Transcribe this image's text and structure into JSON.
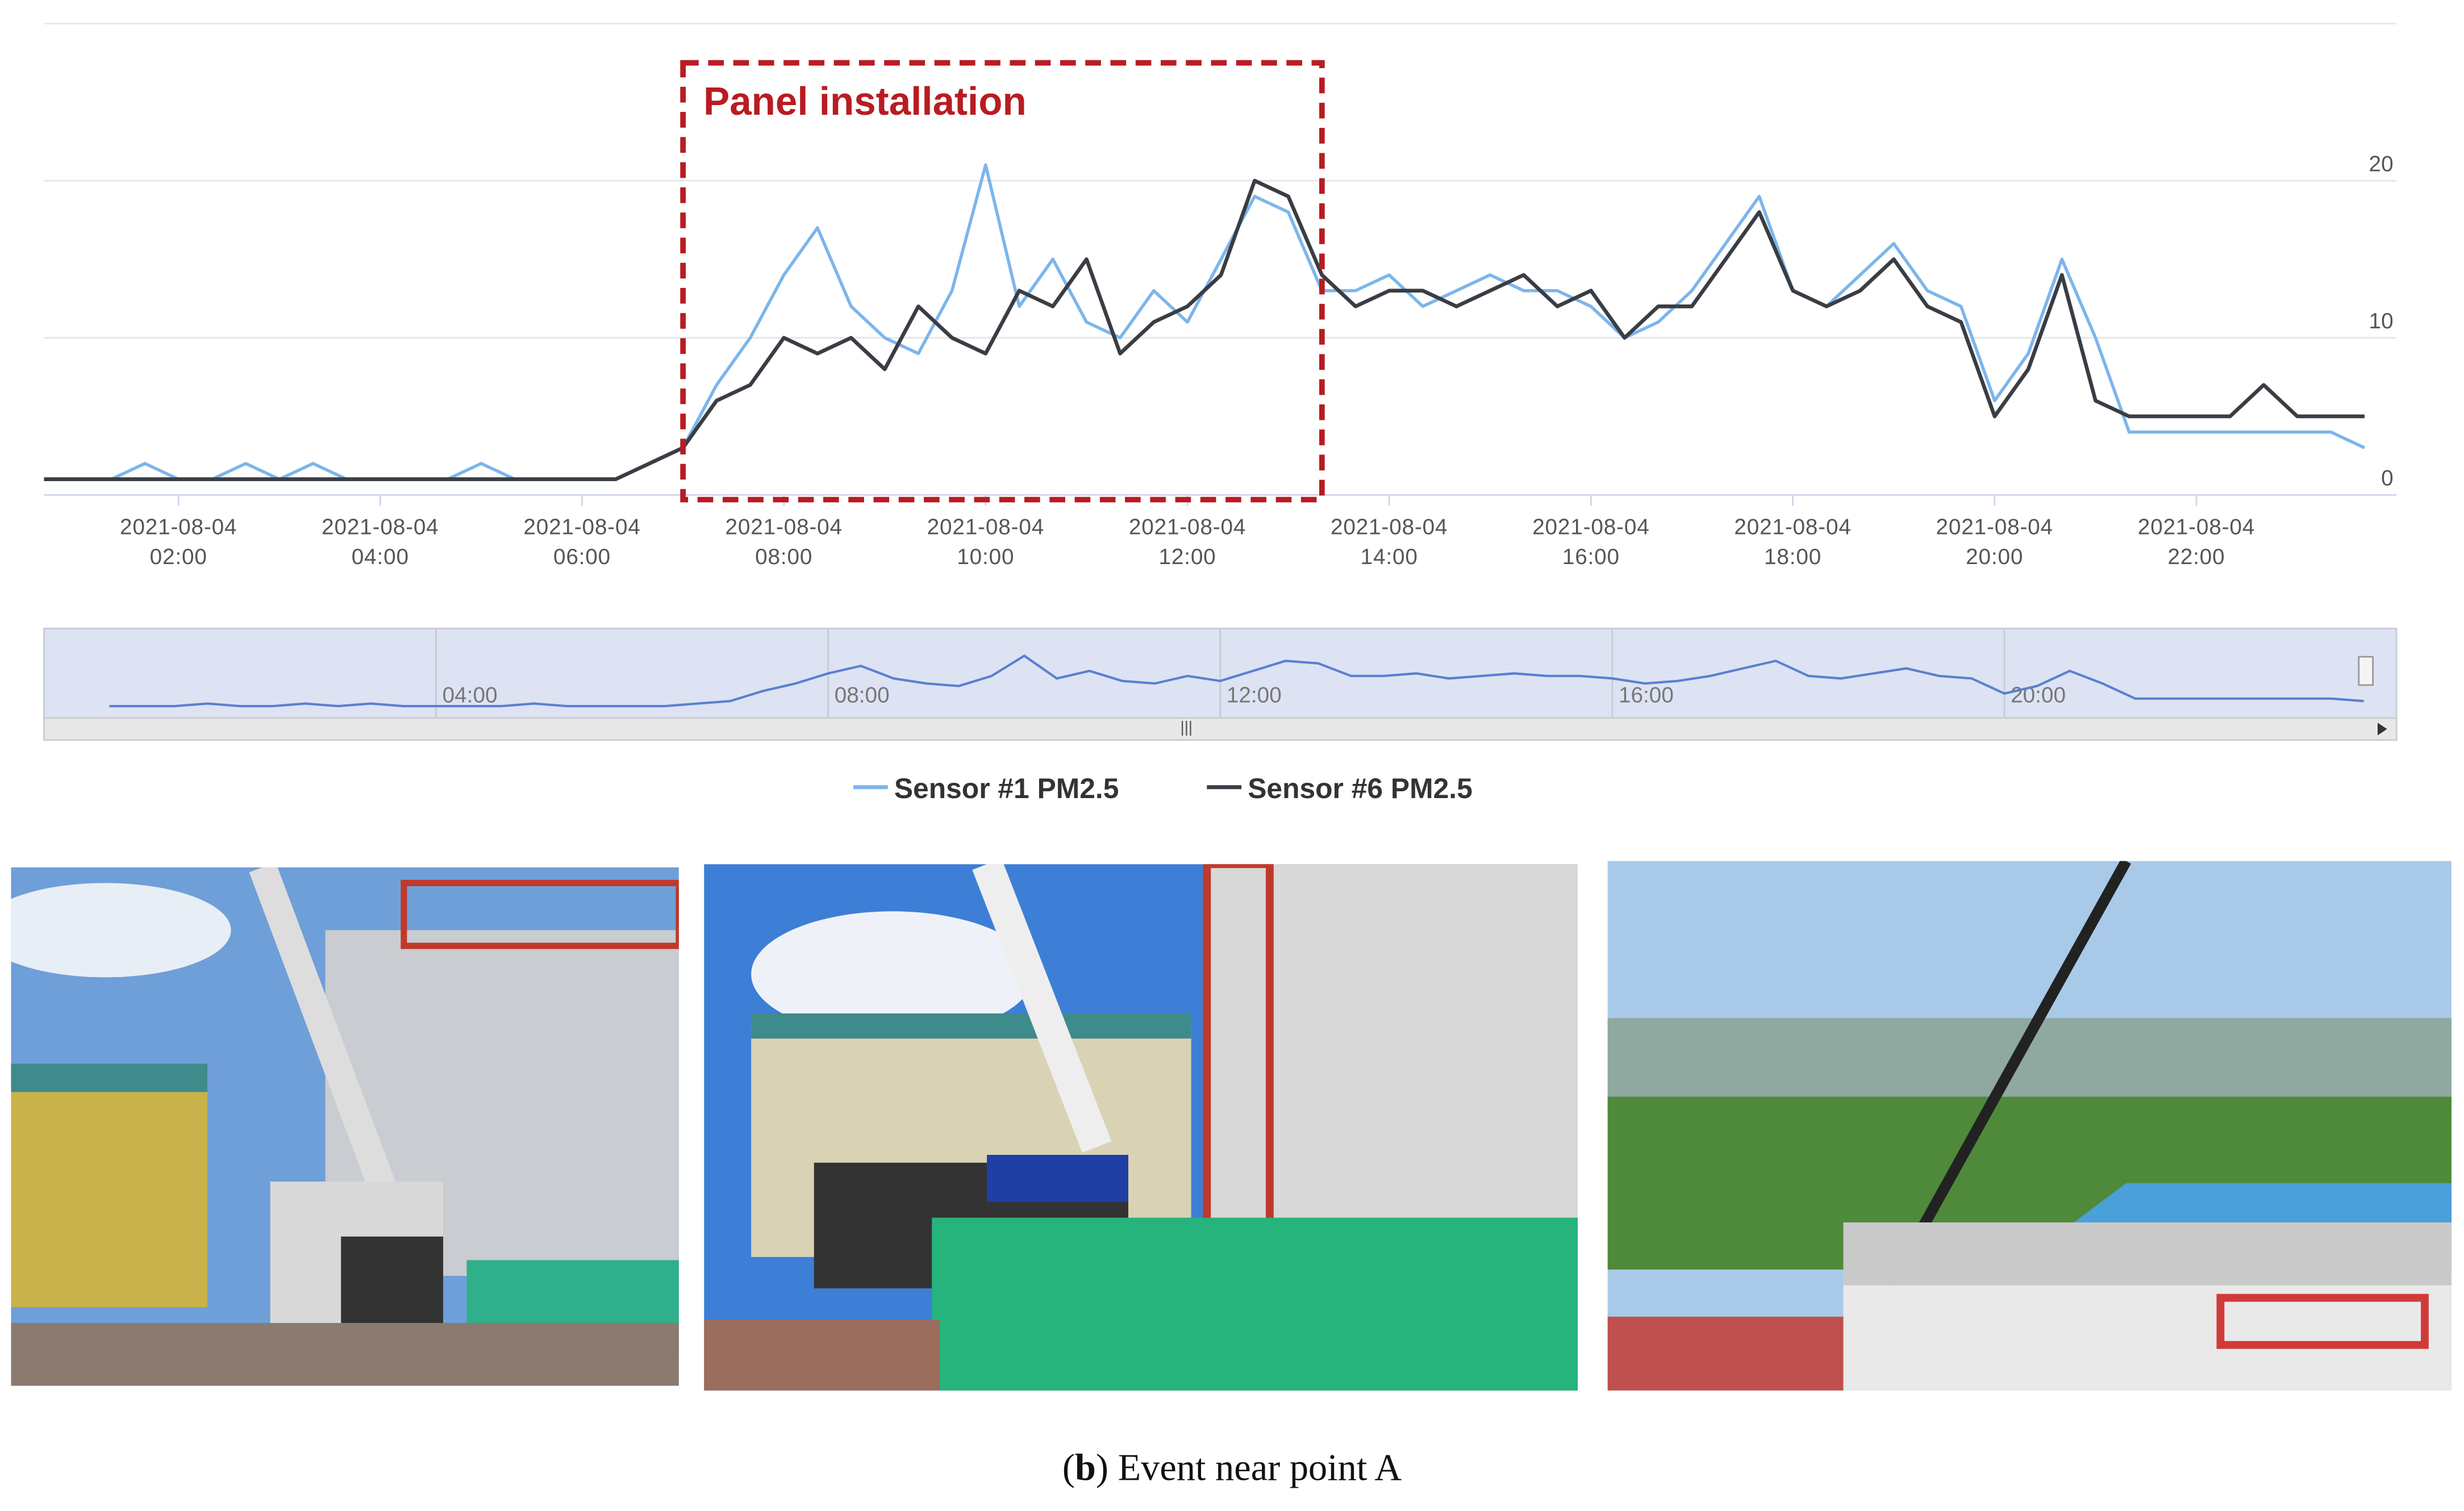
{
  "chart_data": {
    "type": "line",
    "annotation": {
      "text": "Panel installation",
      "start": "2021-08-04 07:00",
      "end": "2021-08-04 13:20"
    },
    "x": [
      "2021-08-04 00:40",
      "2021-08-04 01:00",
      "2021-08-04 01:20",
      "2021-08-04 01:40",
      "2021-08-04 02:00",
      "2021-08-04 02:20",
      "2021-08-04 02:40",
      "2021-08-04 03:00",
      "2021-08-04 03:20",
      "2021-08-04 03:40",
      "2021-08-04 04:00",
      "2021-08-04 04:20",
      "2021-08-04 04:40",
      "2021-08-04 05:00",
      "2021-08-04 05:20",
      "2021-08-04 05:40",
      "2021-08-04 06:00",
      "2021-08-04 06:20",
      "2021-08-04 06:40",
      "2021-08-04 07:00",
      "2021-08-04 07:20",
      "2021-08-04 07:40",
      "2021-08-04 08:00",
      "2021-08-04 08:20",
      "2021-08-04 08:40",
      "2021-08-04 09:00",
      "2021-08-04 09:20",
      "2021-08-04 09:40",
      "2021-08-04 10:00",
      "2021-08-04 10:20",
      "2021-08-04 10:40",
      "2021-08-04 11:00",
      "2021-08-04 11:20",
      "2021-08-04 11:40",
      "2021-08-04 12:00",
      "2021-08-04 12:20",
      "2021-08-04 12:40",
      "2021-08-04 13:00",
      "2021-08-04 13:20",
      "2021-08-04 13:40",
      "2021-08-04 14:00",
      "2021-08-04 14:20",
      "2021-08-04 14:40",
      "2021-08-04 15:00",
      "2021-08-04 15:20",
      "2021-08-04 15:40",
      "2021-08-04 16:00",
      "2021-08-04 16:20",
      "2021-08-04 16:40",
      "2021-08-04 17:00",
      "2021-08-04 17:20",
      "2021-08-04 17:40",
      "2021-08-04 18:00",
      "2021-08-04 18:20",
      "2021-08-04 18:40",
      "2021-08-04 19:00",
      "2021-08-04 19:20",
      "2021-08-04 19:40",
      "2021-08-04 20:00",
      "2021-08-04 20:20",
      "2021-08-04 20:40",
      "2021-08-04 21:00",
      "2021-08-04 21:20",
      "2021-08-04 21:40",
      "2021-08-04 22:00",
      "2021-08-04 22:20",
      "2021-08-04 22:40",
      "2021-08-04 23:00",
      "2021-08-04 23:20",
      "2021-08-04 23:40"
    ],
    "series": [
      {
        "name": "Sensor #1 PM2.5",
        "color": "#7cb5ec",
        "values": [
          1,
          1,
          1,
          2,
          1,
          1,
          2,
          1,
          2,
          1,
          1,
          1,
          1,
          2,
          1,
          1,
          1,
          1,
          2,
          3,
          7,
          10,
          14,
          17,
          12,
          10,
          9,
          13,
          21,
          12,
          15,
          11,
          10,
          13,
          11,
          15,
          19,
          18,
          13,
          13,
          14,
          12,
          13,
          14,
          13,
          13,
          12,
          10,
          11,
          13,
          16,
          19,
          13,
          12,
          14,
          16,
          13,
          12,
          6,
          9,
          15,
          10,
          4,
          4,
          4,
          4,
          4,
          4,
          4,
          3
        ]
      },
      {
        "name": "Sensor #6 PM2.5",
        "color": "#3a3d44",
        "values": [
          1,
          1,
          1,
          1,
          1,
          1,
          1,
          1,
          1,
          1,
          1,
          1,
          1,
          1,
          1,
          1,
          1,
          1,
          2,
          3,
          6,
          7,
          10,
          9,
          10,
          8,
          12,
          10,
          9,
          13,
          12,
          15,
          9,
          11,
          12,
          14,
          20,
          19,
          14,
          12,
          13,
          13,
          12,
          13,
          14,
          12,
          13,
          10,
          12,
          12,
          15,
          18,
          13,
          12,
          13,
          15,
          12,
          11,
          5,
          8,
          14,
          6,
          5,
          5,
          5,
          5,
          7,
          5,
          5,
          5
        ]
      }
    ],
    "xlim": [
      "2021-08-04 00:40",
      "2021-08-04 23:59"
    ],
    "xticks": [
      "2021-08-04 02:00",
      "2021-08-04 04:00",
      "2021-08-04 06:00",
      "2021-08-04 08:00",
      "2021-08-04 10:00",
      "2021-08-04 12:00",
      "2021-08-04 14:00",
      "2021-08-04 16:00",
      "2021-08-04 18:00",
      "2021-08-04 20:00",
      "2021-08-04 22:00"
    ],
    "ylim": [
      0,
      30
    ],
    "yticks": [
      0,
      10,
      20
    ],
    "grid": true,
    "navigator": {
      "xlim": [
        "00:00",
        "24:00"
      ],
      "ticks": [
        "04:00",
        "08:00",
        "12:00",
        "16:00",
        "20:00"
      ]
    },
    "legend": "bottom"
  },
  "caption": [
    "(",
    "b",
    ") Event near point A"
  ]
}
